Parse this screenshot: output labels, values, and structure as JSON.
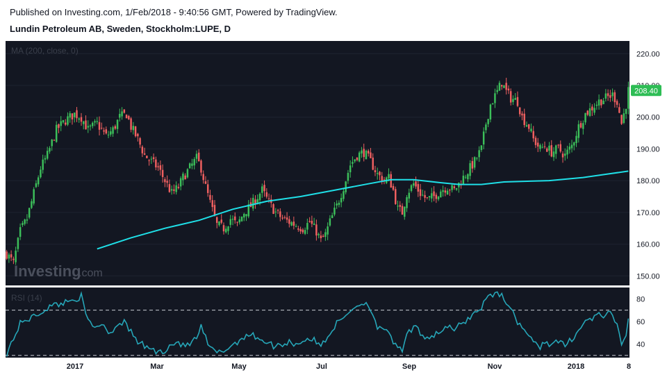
{
  "header": {
    "published": "Published on Investing.com, 1/Feb/2018 - 9:40:56 GMT, Powered by TradingView.",
    "symbol_title": "Lundin Petroleum AB, Sweden, Stockholm:LUPE, D"
  },
  "watermark": {
    "brand": "Investing",
    "suffix": ".com"
  },
  "colors": {
    "background": "#131722",
    "up": "#26a69a",
    "up_candle": "#3cbf5a",
    "down": "#ef5350",
    "down_candle": "#f06060",
    "ma_line": "#1fe0e8",
    "rsi_line": "#26a6b8",
    "price_badge": "#2ebd55"
  },
  "chart_data": [
    {
      "type": "candlestick",
      "title": "Lundin Petroleum AB, Sweden, Stockholm:LUPE, D",
      "indicator_label": "MA (200, close, 0)",
      "x_tick_labels": [
        "2017",
        "Mar",
        "May",
        "Jul",
        "Sep",
        "Nov",
        "2018",
        "8"
      ],
      "y_ticks": [
        150,
        160,
        170,
        180,
        190,
        200,
        210,
        220
      ],
      "ylim": [
        147,
        224
      ],
      "last_price": "208.40",
      "close_path": [
        [
          0,
          157
        ],
        [
          3,
          154
        ],
        [
          6,
          164
        ],
        [
          9,
          168
        ],
        [
          12,
          176
        ],
        [
          15,
          184
        ],
        [
          18,
          188
        ],
        [
          22,
          196
        ],
        [
          26,
          199
        ],
        [
          30,
          201
        ],
        [
          33,
          200
        ],
        [
          36,
          196
        ],
        [
          40,
          198
        ],
        [
          44,
          194
        ],
        [
          47,
          196
        ],
        [
          50,
          200
        ],
        [
          53,
          201
        ],
        [
          55,
          197
        ],
        [
          58,
          193
        ],
        [
          61,
          188
        ],
        [
          64,
          186
        ],
        [
          67,
          184
        ],
        [
          70,
          180
        ],
        [
          73,
          176
        ],
        [
          76,
          178
        ],
        [
          78,
          181
        ],
        [
          81,
          184
        ],
        [
          84,
          187
        ],
        [
          86,
          184
        ],
        [
          88,
          178
        ],
        [
          90,
          173
        ],
        [
          93,
          166
        ],
        [
          96,
          165
        ],
        [
          99,
          168
        ],
        [
          102,
          166
        ],
        [
          105,
          170
        ],
        [
          108,
          172
        ],
        [
          111,
          175
        ],
        [
          113,
          177
        ],
        [
          116,
          173
        ],
        [
          119,
          170
        ],
        [
          122,
          168
        ],
        [
          125,
          167
        ],
        [
          128,
          166
        ],
        [
          131,
          165
        ],
        [
          134,
          167
        ],
        [
          137,
          164
        ],
        [
          139,
          161
        ],
        [
          141,
          163
        ],
        [
          143,
          167
        ],
        [
          146,
          172
        ],
        [
          149,
          178
        ],
        [
          152,
          185
        ],
        [
          155,
          188
        ],
        [
          158,
          189
        ],
        [
          161,
          186
        ],
        [
          164,
          182
        ],
        [
          167,
          180
        ],
        [
          169,
          181
        ],
        [
          171,
          177
        ],
        [
          173,
          171
        ],
        [
          175,
          170
        ],
        [
          177,
          176
        ],
        [
          180,
          179
        ],
        [
          183,
          176
        ],
        [
          186,
          174
        ],
        [
          189,
          175
        ],
        [
          192,
          177
        ],
        [
          195,
          178
        ],
        [
          198,
          177
        ],
        [
          201,
          180
        ],
        [
          204,
          183
        ],
        [
          207,
          186
        ],
        [
          210,
          190
        ],
        [
          212,
          198
        ],
        [
          214,
          204
        ],
        [
          217,
          208
        ],
        [
          219,
          211
        ],
        [
          221,
          208
        ],
        [
          223,
          206
        ],
        [
          226,
          205
        ],
        [
          228,
          200
        ],
        [
          231,
          197
        ],
        [
          233,
          193
        ],
        [
          236,
          190
        ],
        [
          238,
          191
        ],
        [
          241,
          189
        ],
        [
          244,
          190
        ],
        [
          247,
          188
        ],
        [
          250,
          191
        ],
        [
          253,
          197
        ],
        [
          256,
          201
        ],
        [
          259,
          203
        ],
        [
          262,
          205
        ],
        [
          265,
          206
        ],
        [
          268,
          207
        ],
        [
          270,
          205
        ],
        [
          272,
          198
        ],
        [
          274,
          204
        ],
        [
          275,
          208.4
        ]
      ],
      "ma200": [
        [
          40,
          158.5
        ],
        [
          55,
          162
        ],
        [
          70,
          165
        ],
        [
          85,
          167.5
        ],
        [
          100,
          171
        ],
        [
          115,
          173.5
        ],
        [
          130,
          175
        ],
        [
          145,
          177
        ],
        [
          160,
          179
        ],
        [
          170,
          180.3
        ],
        [
          180,
          180.3
        ],
        [
          190,
          179.5
        ],
        [
          200,
          178.8
        ],
        [
          210,
          178.8
        ],
        [
          220,
          179.6
        ],
        [
          240,
          180
        ],
        [
          255,
          181
        ],
        [
          265,
          182
        ],
        [
          275,
          183
        ]
      ]
    },
    {
      "type": "line",
      "indicator_label": "RSI (14)",
      "y_ticks": [
        40,
        60,
        80
      ],
      "ylim": [
        28,
        90
      ],
      "guide_levels": [
        70,
        30
      ],
      "rsi_path": [
        [
          0,
          32
        ],
        [
          3,
          45
        ],
        [
          6,
          58
        ],
        [
          9,
          62
        ],
        [
          12,
          64
        ],
        [
          15,
          68
        ],
        [
          18,
          72
        ],
        [
          22,
          75
        ],
        [
          26,
          77
        ],
        [
          30,
          80
        ],
        [
          33,
          82
        ],
        [
          35,
          65
        ],
        [
          38,
          55
        ],
        [
          42,
          58
        ],
        [
          46,
          50
        ],
        [
          50,
          60
        ],
        [
          53,
          58
        ],
        [
          55,
          50
        ],
        [
          58,
          42
        ],
        [
          61,
          38
        ],
        [
          64,
          36
        ],
        [
          67,
          32
        ],
        [
          70,
          35
        ],
        [
          73,
          40
        ],
        [
          76,
          42
        ],
        [
          78,
          38
        ],
        [
          81,
          40
        ],
        [
          84,
          45
        ],
        [
          86,
          55
        ],
        [
          88,
          45
        ],
        [
          90,
          36
        ],
        [
          93,
          32
        ],
        [
          96,
          34
        ],
        [
          99,
          38
        ],
        [
          102,
          42
        ],
        [
          105,
          47
        ],
        [
          108,
          48
        ],
        [
          111,
          46
        ],
        [
          113,
          44
        ],
        [
          116,
          40
        ],
        [
          119,
          38
        ],
        [
          122,
          40
        ],
        [
          125,
          42
        ],
        [
          128,
          40
        ],
        [
          131,
          43
        ],
        [
          134,
          45
        ],
        [
          137,
          42
        ],
        [
          139,
          38
        ],
        [
          141,
          44
        ],
        [
          143,
          50
        ],
        [
          146,
          58
        ],
        [
          149,
          63
        ],
        [
          152,
          70
        ],
        [
          155,
          74
        ],
        [
          158,
          77
        ],
        [
          161,
          72
        ],
        [
          164,
          55
        ],
        [
          167,
          50
        ],
        [
          169,
          52
        ],
        [
          171,
          42
        ],
        [
          173,
          35
        ],
        [
          175,
          34
        ],
        [
          177,
          48
        ],
        [
          180,
          55
        ],
        [
          183,
          50
        ],
        [
          186,
          46
        ],
        [
          189,
          48
        ],
        [
          192,
          52
        ],
        [
          195,
          55
        ],
        [
          198,
          52
        ],
        [
          201,
          58
        ],
        [
          204,
          62
        ],
        [
          207,
          68
        ],
        [
          210,
          72
        ],
        [
          212,
          80
        ],
        [
          214,
          84
        ],
        [
          217,
          85
        ],
        [
          219,
          83
        ],
        [
          221,
          78
        ],
        [
          223,
          70
        ],
        [
          226,
          60
        ],
        [
          228,
          55
        ],
        [
          231,
          48
        ],
        [
          233,
          40
        ],
        [
          236,
          38
        ],
        [
          238,
          42
        ],
        [
          241,
          40
        ],
        [
          244,
          42
        ],
        [
          247,
          38
        ],
        [
          250,
          45
        ],
        [
          253,
          52
        ],
        [
          256,
          60
        ],
        [
          259,
          63
        ],
        [
          262,
          65
        ],
        [
          265,
          66
        ],
        [
          268,
          66
        ],
        [
          270,
          55
        ],
        [
          272,
          40
        ],
        [
          274,
          50
        ],
        [
          275,
          60
        ]
      ]
    }
  ]
}
